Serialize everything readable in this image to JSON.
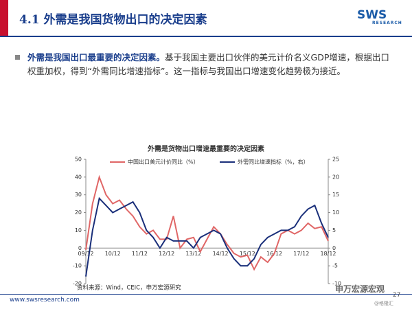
{
  "header": {
    "title": "4.1 外需是我国货物出口的决定因素",
    "logo": "SWS",
    "logo_sub": "RESEARCH"
  },
  "bullet": {
    "bold": "外需是我国出口最重要的决定因素。",
    "text": "基于我国主要出口伙伴的美元计价名义GDP增速，根据出口权重加权，得到“外需同比增速指标”。这一指标与我国出口增速变化趋势极为接近。"
  },
  "chart_data": {
    "type": "line",
    "title": "外需是货物出口增速最重要的决定因素",
    "source": "资料来源：Wind，CEIC，申万宏源研究",
    "categories": [
      "09/12",
      null,
      null,
      null,
      "10/12",
      null,
      null,
      null,
      "11/12",
      null,
      null,
      null,
      "12/12",
      null,
      null,
      null,
      "13/12",
      null,
      null,
      null,
      "14/12",
      null,
      null,
      null,
      "15/12",
      null,
      null,
      null,
      "16/12",
      null,
      null,
      null,
      "17/12",
      null,
      null,
      null,
      "18/12"
    ],
    "series": [
      {
        "name": "中国出口美元计价同比（%）",
        "color": "#e06666",
        "values": [
          -1,
          25,
          40,
          30,
          25,
          27,
          22,
          18,
          12,
          8,
          10,
          5,
          5,
          18,
          0,
          5,
          6,
          -2,
          5,
          12,
          8,
          2,
          -3,
          -5,
          -4,
          -12,
          -5,
          -8,
          -3,
          8,
          10,
          8,
          10,
          14,
          11,
          12,
          4
        ]
      },
      {
        "name": "外需同比增速指标（%，右）",
        "color": "#1a2f7a",
        "axis": "y2",
        "values": [
          -8,
          5,
          14,
          12,
          10,
          11,
          12,
          13,
          10,
          5,
          3,
          0,
          3,
          2,
          2,
          2,
          0,
          3,
          4,
          5,
          4,
          0,
          -3,
          -5,
          -5,
          -3,
          1,
          3,
          4,
          5,
          5,
          6,
          9,
          11,
          12,
          7,
          3
        ]
      }
    ],
    "ylim": [
      -20,
      50
    ],
    "yticks": [
      -20,
      -10,
      0,
      10,
      20,
      30,
      40,
      50
    ],
    "y2lim": [
      -10,
      25
    ],
    "y2ticks": [
      -10,
      -5,
      0,
      5,
      10,
      15,
      20,
      25
    ]
  },
  "footer": {
    "url": "www.swsresearch.com",
    "page": "27",
    "watermark": "申万宏源宏观",
    "watermark2": "@格隆汇"
  }
}
